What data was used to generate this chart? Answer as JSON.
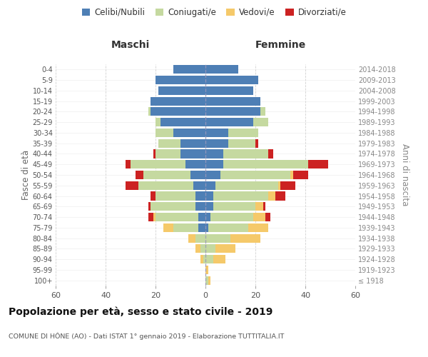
{
  "age_groups": [
    "100+",
    "95-99",
    "90-94",
    "85-89",
    "80-84",
    "75-79",
    "70-74",
    "65-69",
    "60-64",
    "55-59",
    "50-54",
    "45-49",
    "40-44",
    "35-39",
    "30-34",
    "25-29",
    "20-24",
    "15-19",
    "10-14",
    "5-9",
    "0-4"
  ],
  "birth_years": [
    "≤ 1918",
    "1919-1923",
    "1924-1928",
    "1929-1933",
    "1934-1938",
    "1939-1943",
    "1944-1948",
    "1949-1953",
    "1954-1958",
    "1959-1963",
    "1964-1968",
    "1969-1973",
    "1974-1978",
    "1979-1983",
    "1984-1988",
    "1989-1993",
    "1994-1998",
    "1999-2003",
    "2004-2008",
    "2009-2013",
    "2014-2018"
  ],
  "maschi": {
    "celibe": [
      0,
      0,
      0,
      0,
      0,
      3,
      3,
      4,
      4,
      5,
      6,
      8,
      10,
      10,
      13,
      18,
      22,
      22,
      19,
      20,
      13
    ],
    "coniugato": [
      0,
      0,
      1,
      2,
      4,
      10,
      17,
      18,
      16,
      22,
      19,
      22,
      10,
      9,
      7,
      2,
      1,
      0,
      0,
      0,
      0
    ],
    "vedovo": [
      0,
      0,
      1,
      2,
      3,
      4,
      1,
      0,
      0,
      0,
      0,
      0,
      0,
      0,
      0,
      0,
      0,
      0,
      0,
      0,
      0
    ],
    "divorziato": [
      0,
      0,
      0,
      0,
      0,
      0,
      2,
      1,
      2,
      5,
      3,
      2,
      1,
      0,
      0,
      0,
      0,
      0,
      0,
      0,
      0
    ]
  },
  "femmine": {
    "nubile": [
      0,
      0,
      0,
      0,
      0,
      1,
      2,
      3,
      3,
      4,
      6,
      7,
      7,
      9,
      9,
      19,
      22,
      22,
      19,
      21,
      13
    ],
    "coniugata": [
      1,
      0,
      3,
      4,
      10,
      16,
      17,
      17,
      22,
      25,
      28,
      34,
      18,
      11,
      12,
      6,
      2,
      0,
      0,
      0,
      0
    ],
    "vedova": [
      1,
      1,
      5,
      8,
      12,
      8,
      5,
      3,
      3,
      1,
      1,
      0,
      0,
      0,
      0,
      0,
      0,
      0,
      0,
      0,
      0
    ],
    "divorziata": [
      0,
      0,
      0,
      0,
      0,
      0,
      2,
      1,
      4,
      6,
      6,
      8,
      2,
      1,
      0,
      0,
      0,
      0,
      0,
      0,
      0
    ]
  },
  "colors": {
    "celibe": "#4e7fb5",
    "coniugato": "#c5d9a0",
    "vedovo": "#f5c96a",
    "divorziato": "#cc2222"
  },
  "xlim": 60,
  "title": "Popolazione per età, sesso e stato civile - 2019",
  "subtitle": "COMUNE DI HÔNE (AO) - Dati ISTAT 1° gennaio 2019 - Elaborazione TUTTITALIA.IT",
  "ylabel_left": "Fasce di età",
  "ylabel_right": "Anni di nascita",
  "header_maschi": "Maschi",
  "header_femmine": "Femmine",
  "legend_labels": [
    "Celibi/Nubili",
    "Coniugati/e",
    "Vedovi/e",
    "Divorziati/e"
  ]
}
